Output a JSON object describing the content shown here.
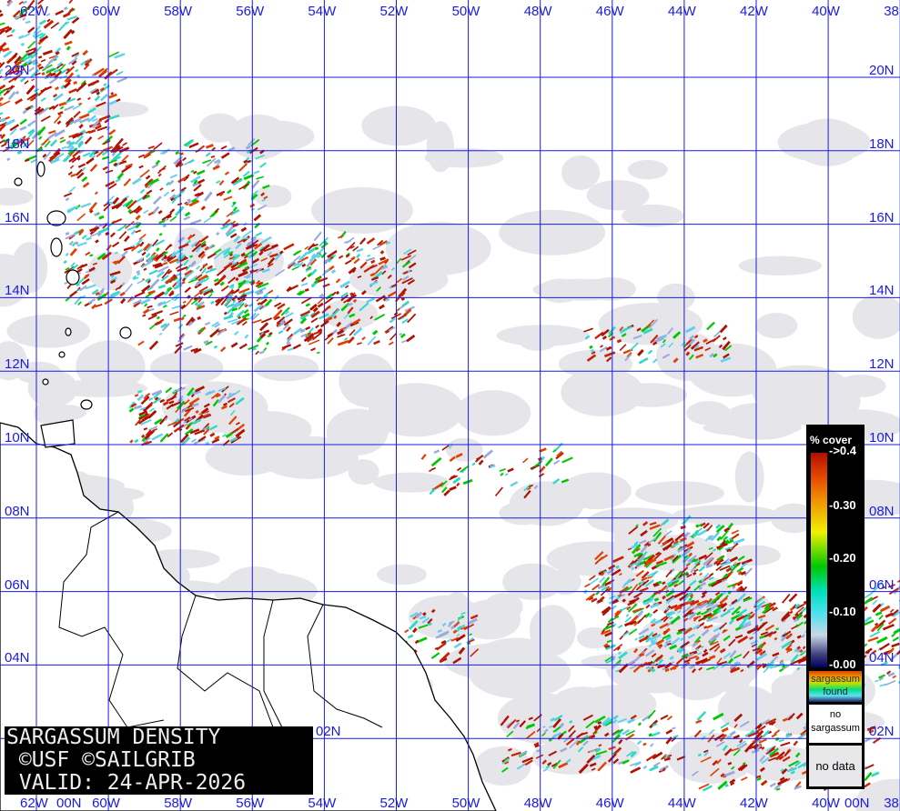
{
  "map": {
    "title_lines": [
      "SARGASSUM DENSITY",
      " ©USF ©SAILGRIB",
      " VALID: 24-APR-2026"
    ],
    "longitude_labels": [
      "62W",
      "60W",
      "58W",
      "56W",
      "54W",
      "52W",
      "50W",
      "48W",
      "46W",
      "44W",
      "42W",
      "40W",
      "38"
    ],
    "latitude_labels": [
      "20N",
      "18N",
      "16N",
      "14N",
      "12N",
      "10N",
      "08N",
      "06N",
      "04N",
      "02N",
      "00N"
    ],
    "colors": {
      "grid": "#1a1ae6",
      "no_data": "#e6e6ea",
      "land": "#ffffff",
      "coast": "#000000",
      "sargassum_high": "#b01000",
      "sargassum_mid": "#00c800",
      "sargassum_low": "#50e0f0"
    }
  },
  "legend": {
    "title": "% cover",
    "ticks": [
      "->0.4",
      "-0.30",
      "-0.20",
      "-0.10",
      "-0.00"
    ],
    "found_label": [
      "sargassum",
      "found"
    ],
    "no_sargassum_label": [
      "no",
      "sargassum"
    ],
    "no_data_label": "no data"
  }
}
